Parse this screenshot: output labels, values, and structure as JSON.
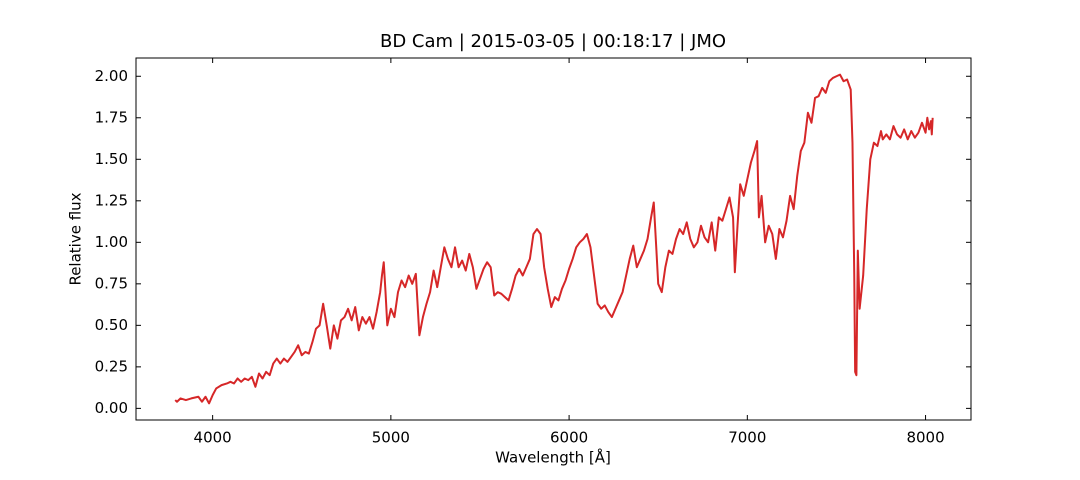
{
  "chart_data": {
    "type": "line",
    "title": "BD Cam | 2015-03-05 | 00:18:17 | JMO",
    "x_label": "Wavelength [Å]",
    "y_label": "Relative flux",
    "x": [
      3790,
      3800,
      3820,
      3850,
      3880,
      3920,
      3940,
      3960,
      3980,
      4000,
      4020,
      4050,
      4080,
      4100,
      4120,
      4140,
      4160,
      4180,
      4200,
      4220,
      4240,
      4260,
      4280,
      4300,
      4320,
      4340,
      4360,
      4380,
      4400,
      4420,
      4440,
      4460,
      4480,
      4500,
      4520,
      4540,
      4560,
      4580,
      4600,
      4620,
      4640,
      4660,
      4680,
      4700,
      4720,
      4740,
      4760,
      4780,
      4800,
      4820,
      4840,
      4860,
      4880,
      4900,
      4920,
      4940,
      4950,
      4960,
      4970,
      4980,
      5000,
      5020,
      5040,
      5060,
      5080,
      5100,
      5120,
      5140,
      5160,
      5180,
      5200,
      5220,
      5240,
      5260,
      5280,
      5300,
      5320,
      5340,
      5360,
      5380,
      5400,
      5420,
      5440,
      5460,
      5480,
      5500,
      5520,
      5540,
      5560,
      5580,
      5600,
      5620,
      5640,
      5660,
      5680,
      5700,
      5720,
      5740,
      5760,
      5780,
      5800,
      5820,
      5840,
      5860,
      5880,
      5900,
      5920,
      5940,
      5960,
      5980,
      6000,
      6020,
      6040,
      6060,
      6080,
      6100,
      6120,
      6140,
      6160,
      6180,
      6200,
      6220,
      6240,
      6260,
      6280,
      6300,
      6320,
      6340,
      6360,
      6380,
      6400,
      6420,
      6440,
      6460,
      6475,
      6490,
      6500,
      6520,
      6540,
      6560,
      6580,
      6600,
      6620,
      6640,
      6660,
      6680,
      6700,
      6720,
      6740,
      6760,
      6780,
      6800,
      6820,
      6840,
      6860,
      6880,
      6900,
      6920,
      6930,
      6945,
      6960,
      6980,
      7000,
      7020,
      7040,
      7055,
      7065,
      7080,
      7100,
      7120,
      7140,
      7160,
      7180,
      7200,
      7220,
      7240,
      7260,
      7280,
      7300,
      7320,
      7340,
      7360,
      7380,
      7400,
      7420,
      7440,
      7460,
      7480,
      7500,
      7520,
      7540,
      7560,
      7580,
      7590,
      7600,
      7605,
      7612,
      7620,
      7630,
      7650,
      7670,
      7690,
      7710,
      7730,
      7750,
      7760,
      7780,
      7800,
      7820,
      7840,
      7860,
      7880,
      7900,
      7920,
      7940,
      7960,
      7980,
      8000,
      8010,
      8020,
      8030,
      8035,
      8040
    ],
    "series": [
      {
        "name": "BD Cam",
        "color": "#d62728",
        "values": [
          0.05,
          0.04,
          0.06,
          0.05,
          0.06,
          0.07,
          0.04,
          0.07,
          0.03,
          0.08,
          0.12,
          0.14,
          0.15,
          0.16,
          0.15,
          0.18,
          0.16,
          0.18,
          0.17,
          0.19,
          0.13,
          0.21,
          0.18,
          0.22,
          0.2,
          0.27,
          0.3,
          0.27,
          0.3,
          0.28,
          0.31,
          0.34,
          0.38,
          0.32,
          0.34,
          0.33,
          0.4,
          0.48,
          0.5,
          0.63,
          0.5,
          0.36,
          0.5,
          0.42,
          0.53,
          0.55,
          0.6,
          0.53,
          0.61,
          0.47,
          0.55,
          0.51,
          0.55,
          0.48,
          0.58,
          0.7,
          0.8,
          0.88,
          0.7,
          0.5,
          0.6,
          0.55,
          0.7,
          0.77,
          0.73,
          0.8,
          0.75,
          0.81,
          0.44,
          0.55,
          0.63,
          0.7,
          0.83,
          0.73,
          0.85,
          0.97,
          0.9,
          0.85,
          0.97,
          0.85,
          0.89,
          0.83,
          0.93,
          0.85,
          0.72,
          0.78,
          0.84,
          0.88,
          0.85,
          0.68,
          0.7,
          0.69,
          0.67,
          0.65,
          0.72,
          0.8,
          0.84,
          0.8,
          0.85,
          0.9,
          1.05,
          1.08,
          1.05,
          0.85,
          0.72,
          0.61,
          0.67,
          0.65,
          0.72,
          0.77,
          0.84,
          0.9,
          0.97,
          1.0,
          1.02,
          1.05,
          0.97,
          0.8,
          0.63,
          0.6,
          0.62,
          0.58,
          0.55,
          0.6,
          0.65,
          0.7,
          0.8,
          0.9,
          0.98,
          0.85,
          0.9,
          0.95,
          1.02,
          1.15,
          1.24,
          0.95,
          0.75,
          0.7,
          0.85,
          0.95,
          0.93,
          1.02,
          1.08,
          1.05,
          1.12,
          1.02,
          0.97,
          1.0,
          1.1,
          1.03,
          1.0,
          1.12,
          0.95,
          1.15,
          1.13,
          1.2,
          1.27,
          1.15,
          0.82,
          1.1,
          1.35,
          1.28,
          1.38,
          1.48,
          1.55,
          1.61,
          1.15,
          1.28,
          1.0,
          1.1,
          1.05,
          0.9,
          1.08,
          1.03,
          1.13,
          1.28,
          1.2,
          1.4,
          1.55,
          1.6,
          1.78,
          1.72,
          1.87,
          1.88,
          1.93,
          1.9,
          1.97,
          1.99,
          2.0,
          2.01,
          1.97,
          1.98,
          1.92,
          1.6,
          0.8,
          0.22,
          0.2,
          0.95,
          0.6,
          0.8,
          1.2,
          1.5,
          1.6,
          1.58,
          1.67,
          1.62,
          1.65,
          1.62,
          1.7,
          1.65,
          1.63,
          1.68,
          1.62,
          1.67,
          1.63,
          1.66,
          1.72,
          1.66,
          1.75,
          1.68,
          1.73,
          1.65,
          1.75
        ]
      }
    ],
    "xlim": [
      3570,
      8255
    ],
    "ylim": [
      -0.07,
      2.11
    ],
    "xticks": [
      4000,
      5000,
      6000,
      7000,
      8000
    ],
    "yticks": [
      {
        "value": 0,
        "label": "0.00"
      },
      {
        "value": 0.25,
        "label": "0.25"
      },
      {
        "value": 0.5,
        "label": "0.50"
      },
      {
        "value": 0.75,
        "label": "0.75"
      },
      {
        "value": 1,
        "label": "1.00"
      },
      {
        "value": 1.25,
        "label": "1.25"
      },
      {
        "value": 1.5,
        "label": "1.50"
      },
      {
        "value": 1.75,
        "label": "1.75"
      },
      {
        "value": 2,
        "label": "2.00"
      }
    ],
    "grid": false
  }
}
